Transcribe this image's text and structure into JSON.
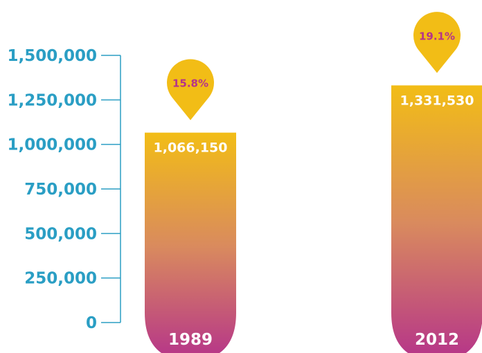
{
  "chart_data": {
    "type": "bar",
    "title": "",
    "xlabel": "",
    "ylabel": "",
    "categories": [
      "1989",
      "2012"
    ],
    "values": [
      1066150,
      1331530
    ],
    "value_labels": [
      "1,066,150",
      "1,331,530"
    ],
    "percent_labels": [
      "15.8%",
      "19.1%"
    ],
    "ylim": [
      0,
      1500000
    ],
    "yticks": [
      0,
      250000,
      500000,
      750000,
      1000000,
      1250000,
      1500000
    ],
    "ytick_labels": [
      "0",
      "250,000",
      "500,000",
      "750,000",
      "1,000,000",
      "1,250,000",
      "1,500,000"
    ],
    "grid": false,
    "legend": "none",
    "colors": {
      "axis": "#2a9ec4",
      "bar_top": "#f2bd16",
      "bar_mid": "#d98a5e",
      "bar_bottom": "#b5338a",
      "pin": "#f2bd16",
      "percent_text": "#b5338a"
    }
  }
}
